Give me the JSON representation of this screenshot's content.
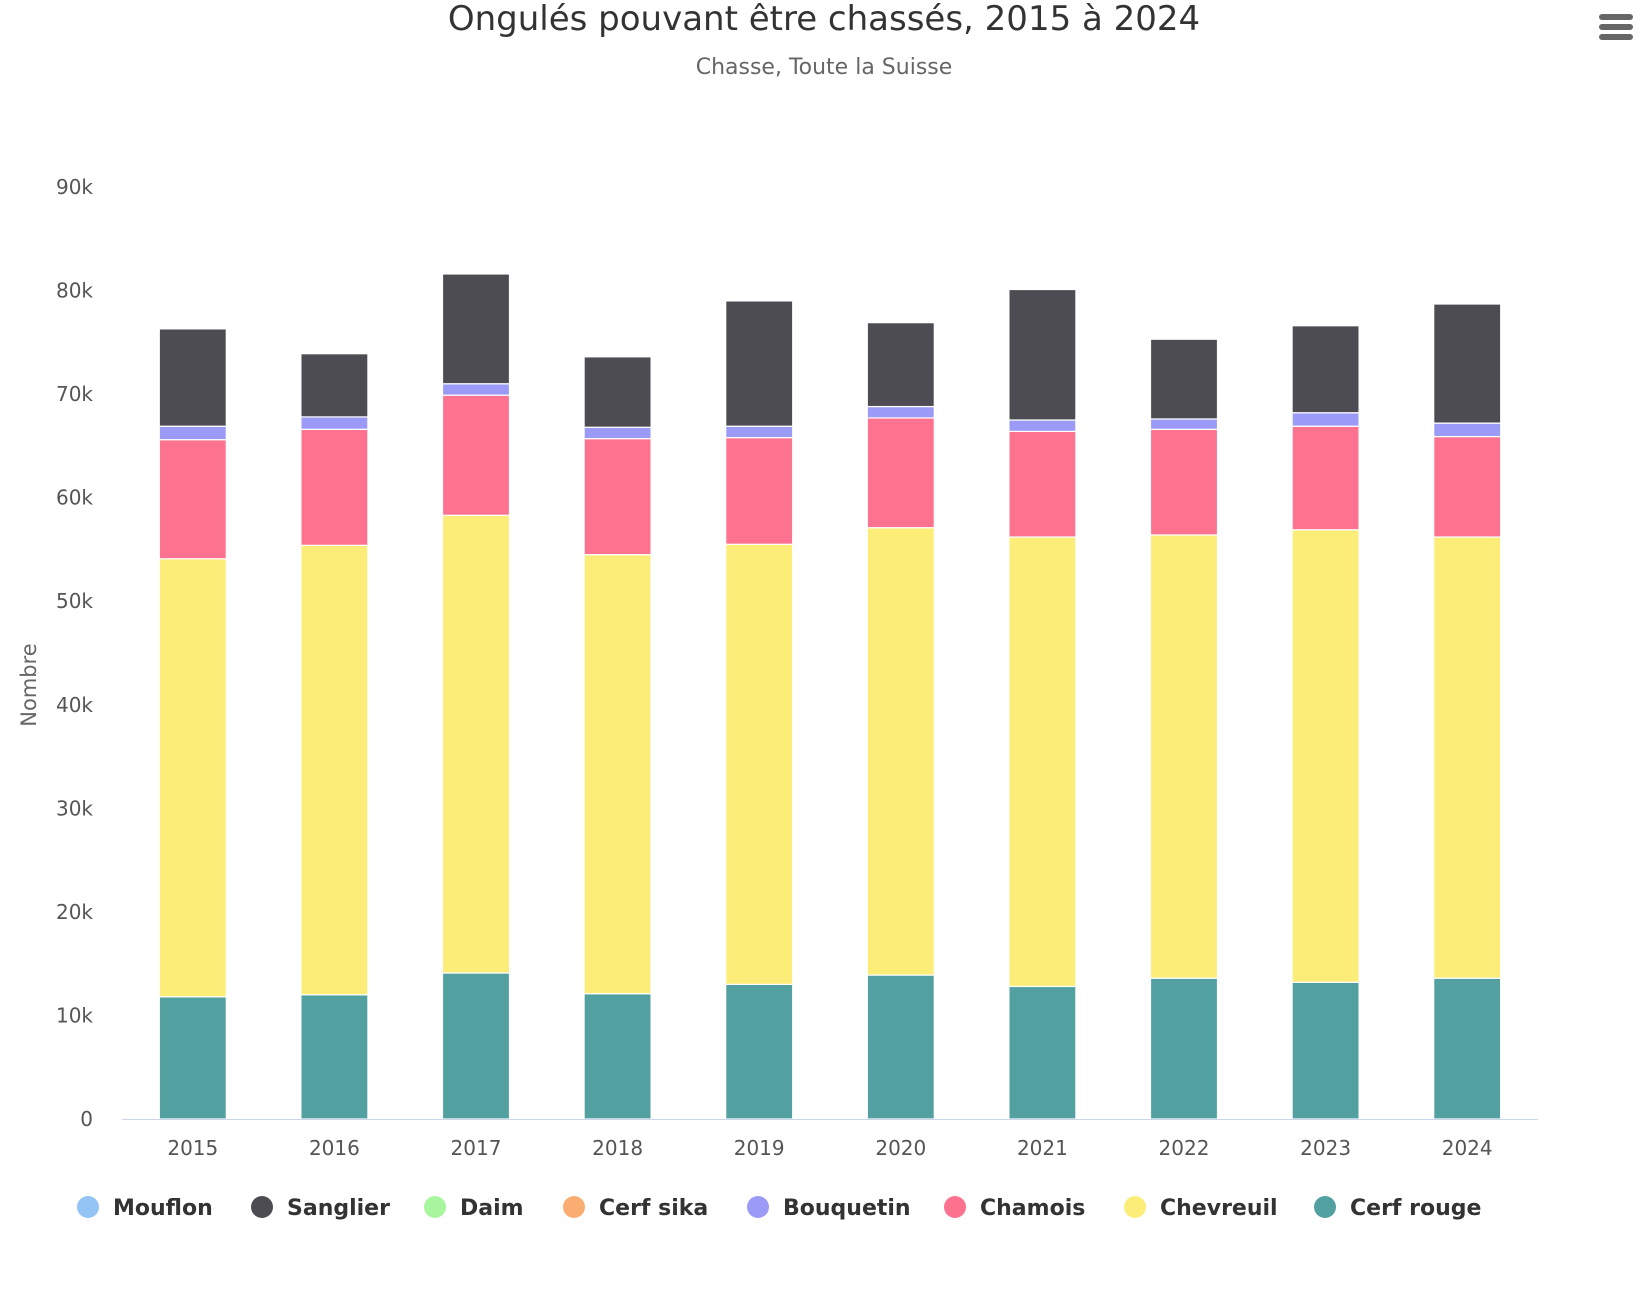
{
  "chart_data": {
    "type": "bar",
    "stacked": true,
    "title": "Ongulés pouvant être chassés, 2015 à 2024",
    "subtitle": "Chasse, Toute la Suisse",
    "xlabel": "",
    "ylabel": "Nombre",
    "ylim": [
      0,
      90000
    ],
    "yticks": [
      {
        "value": 0,
        "label": "0"
      },
      {
        "value": 10000,
        "label": "10k"
      },
      {
        "value": 20000,
        "label": "20k"
      },
      {
        "value": 30000,
        "label": "30k"
      },
      {
        "value": 40000,
        "label": "40k"
      },
      {
        "value": 50000,
        "label": "50k"
      },
      {
        "value": 60000,
        "label": "60k"
      },
      {
        "value": 70000,
        "label": "70k"
      },
      {
        "value": 80000,
        "label": "80k"
      },
      {
        "value": 90000,
        "label": "90k"
      }
    ],
    "grid": false,
    "legend_position": "bottom",
    "categories": [
      "2015",
      "2016",
      "2017",
      "2018",
      "2019",
      "2020",
      "2021",
      "2022",
      "2023",
      "2024"
    ],
    "series": [
      {
        "name": "Cerf rouge",
        "color": "#52a1a0",
        "values": [
          11800,
          12000,
          14100,
          12100,
          13000,
          13900,
          12800,
          13600,
          13200,
          13600
        ]
      },
      {
        "name": "Chevreuil",
        "color": "#fced78",
        "values": [
          42300,
          43400,
          44200,
          42400,
          42500,
          43200,
          43400,
          42800,
          43700,
          42600
        ]
      },
      {
        "name": "Chamois",
        "color": "#fd728e",
        "values": [
          11500,
          11200,
          11600,
          11200,
          10300,
          10600,
          10200,
          10200,
          10000,
          9700
        ]
      },
      {
        "name": "Cerf sika",
        "color": "#f9ad72",
        "values": [
          0,
          0,
          0,
          0,
          0,
          0,
          0,
          0,
          0,
          0
        ]
      },
      {
        "name": "Daim",
        "color": "#a7f59c",
        "values": [
          0,
          0,
          0,
          0,
          0,
          0,
          0,
          0,
          0,
          0
        ]
      },
      {
        "name": "Bouquetin",
        "color": "#9b9bf7",
        "values": [
          1300,
          1200,
          1100,
          1100,
          1100,
          1100,
          1100,
          1000,
          1300,
          1300
        ]
      },
      {
        "name": "Sanglier",
        "color": "#4c4c52",
        "values": [
          9400,
          6100,
          10600,
          6800,
          12100,
          8100,
          12600,
          7700,
          8400,
          11500
        ]
      },
      {
        "name": "Mouflon",
        "color": "#94c3f5",
        "values": [
          0,
          0,
          0,
          0,
          0,
          0,
          0,
          0,
          0,
          0
        ]
      }
    ],
    "legend_order": [
      "Mouflon",
      "Sanglier",
      "Daim",
      "Cerf sika",
      "Bouquetin",
      "Chamois",
      "Chevreuil",
      "Cerf rouge"
    ]
  },
  "menu": {
    "icon": "hamburger-menu-icon",
    "color": "#666666"
  }
}
